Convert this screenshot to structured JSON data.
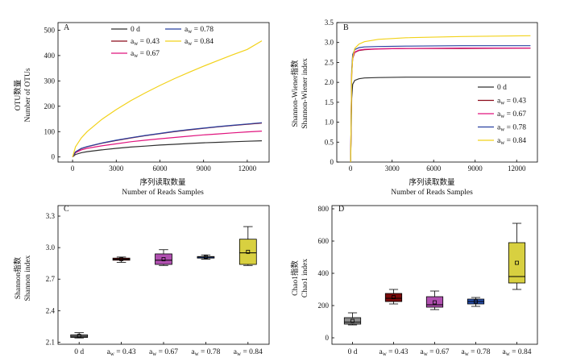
{
  "colors": {
    "d0": "#303030",
    "a043": "#8b0a1a",
    "a067": "#e0147e",
    "a078": "#2840a0",
    "a084": "#f2d21a",
    "box_d0": "#8a8a8a",
    "box_a043": "#7a0a0a",
    "box_a067": "#b050b0",
    "box_a078": "#2850b0",
    "box_a084": "#d8d040"
  },
  "chart_data": [
    {
      "panel": "A",
      "type": "line",
      "xlabel_cn": "序列读取数量",
      "xlabel_en": "Number of Reads Samples",
      "ylabel_cn": "OTU数量",
      "ylabel_en": "Number of OTUs",
      "xlim": [
        -1000,
        13500
      ],
      "ylim": [
        -20,
        530
      ],
      "xticks": [
        0,
        3000,
        6000,
        9000,
        12000
      ],
      "yticks": [
        0,
        100,
        200,
        300,
        400,
        500
      ],
      "legend_position": "top-left",
      "legend": [
        {
          "label_main": "0 d",
          "label_sub": "",
          "label_tail": "",
          "color_key": "d0"
        },
        {
          "label_main": "a",
          "label_sub": "w",
          "label_tail": " = 0.43",
          "color_key": "a043"
        },
        {
          "label_main": "a",
          "label_sub": "w",
          "label_tail": " = 0.67",
          "color_key": "a067"
        },
        {
          "label_main": "a",
          "label_sub": "w",
          "label_tail": " = 0.78",
          "color_key": "a078"
        },
        {
          "label_main": "a",
          "label_sub": "w",
          "label_tail": " = 0.84",
          "color_key": "a084"
        }
      ],
      "series": [
        {
          "color_key": "d0",
          "x": [
            0,
            200,
            600,
            1000,
            2000,
            3000,
            4000,
            5000,
            6000,
            7000,
            8000,
            9000,
            10000,
            11000,
            12000,
            13000
          ],
          "y": [
            0,
            10,
            17,
            21,
            28,
            34,
            39,
            43,
            47,
            50,
            53,
            56,
            58,
            60,
            62,
            64
          ]
        },
        {
          "color_key": "a067",
          "x": [
            0,
            200,
            600,
            1000,
            2000,
            3000,
            4000,
            5000,
            6000,
            7000,
            8000,
            9000,
            10000,
            11000,
            12000,
            13000
          ],
          "y": [
            0,
            17,
            28,
            34,
            44,
            52,
            60,
            66,
            72,
            77,
            82,
            87,
            91,
            95,
            99,
            102
          ]
        },
        {
          "color_key": "a043",
          "x": [
            0,
            200,
            600,
            1000,
            2000,
            3000,
            4000,
            5000,
            6000,
            7000,
            8000,
            9000,
            10000,
            11000,
            12000,
            13000
          ],
          "y": [
            0,
            20,
            33,
            40,
            54,
            65,
            75,
            84,
            92,
            100,
            107,
            113,
            119,
            124,
            129,
            134
          ]
        },
        {
          "color_key": "a078",
          "x": [
            0,
            200,
            600,
            1000,
            2000,
            3000,
            4000,
            5000,
            6000,
            7000,
            8000,
            9000,
            10000,
            11000,
            12000,
            13000
          ],
          "y": [
            0,
            20,
            34,
            41,
            55,
            66,
            76,
            85,
            93,
            101,
            108,
            114,
            120,
            125,
            130,
            135
          ]
        },
        {
          "color_key": "a084",
          "x": [
            0,
            200,
            600,
            1000,
            2000,
            3000,
            4000,
            5000,
            6000,
            7000,
            8000,
            9000,
            10000,
            11000,
            12000,
            13000
          ],
          "y": [
            0,
            40,
            75,
            100,
            148,
            187,
            222,
            253,
            282,
            309,
            334,
            358,
            381,
            403,
            424,
            458
          ]
        }
      ]
    },
    {
      "panel": "B",
      "type": "line",
      "xlabel_cn": "序列读取数量",
      "xlabel_en": "Number of Reads Samples",
      "ylabel_cn": "Shannon-Wiener指数",
      "ylabel_en": "Shannon-Wiener index",
      "xlim": [
        -1000,
        13500
      ],
      "ylim": [
        0,
        3.5
      ],
      "xticks": [
        0,
        3000,
        6000,
        9000,
        12000
      ],
      "yticks": [
        0,
        0.5,
        1.0,
        1.5,
        2.0,
        2.5,
        3.0,
        3.5
      ],
      "ytick_labels": [
        "0",
        "0.5",
        "1.0",
        "1.5",
        "2.0",
        "2.5",
        "3.0",
        "3.5"
      ],
      "legend_position": "bottom-right",
      "series": [
        {
          "color_key": "d0",
          "x": [
            0,
            80,
            150,
            300,
            600,
            1000,
            2000,
            4000,
            8000,
            13000
          ],
          "y": [
            0,
            1.6,
            1.95,
            2.05,
            2.09,
            2.11,
            2.12,
            2.13,
            2.13,
            2.13
          ]
        },
        {
          "color_key": "a043",
          "x": [
            0,
            80,
            150,
            300,
            600,
            1000,
            2000,
            4000,
            8000,
            13000
          ],
          "y": [
            0,
            2.2,
            2.6,
            2.75,
            2.8,
            2.82,
            2.84,
            2.85,
            2.85,
            2.86
          ]
        },
        {
          "color_key": "a067",
          "x": [
            0,
            80,
            150,
            300,
            600,
            1000,
            2000,
            4000,
            8000,
            13000
          ],
          "y": [
            0,
            2.25,
            2.62,
            2.76,
            2.81,
            2.83,
            2.84,
            2.85,
            2.86,
            2.86
          ]
        },
        {
          "color_key": "a078",
          "x": [
            0,
            80,
            150,
            300,
            600,
            1000,
            2000,
            4000,
            8000,
            13000
          ],
          "y": [
            0,
            2.3,
            2.7,
            2.82,
            2.87,
            2.89,
            2.9,
            2.91,
            2.92,
            2.92
          ]
        },
        {
          "color_key": "a084",
          "x": [
            0,
            80,
            150,
            300,
            600,
            1000,
            2000,
            4000,
            8000,
            13000
          ],
          "y": [
            0,
            2.2,
            2.62,
            2.85,
            2.96,
            3.02,
            3.08,
            3.12,
            3.15,
            3.17
          ]
        }
      ]
    },
    {
      "panel": "C",
      "type": "box",
      "ylabel_cn": "Shannon指数",
      "ylabel_en": "Shannon index",
      "ylim": [
        2.08,
        3.4
      ],
      "yticks": [
        2.1,
        2.4,
        2.7,
        3.0,
        3.3
      ],
      "ytick_labels": [
        "2.1",
        "2.4",
        "2.7",
        "3.0",
        "3.3"
      ],
      "categories": [
        {
          "main": "0 d",
          "sub": "",
          "tail": ""
        },
        {
          "main": "a",
          "sub": "w",
          "tail": " = 0.43"
        },
        {
          "main": "a",
          "sub": "w",
          "tail": " = 0.67"
        },
        {
          "main": "a",
          "sub": "w",
          "tail": " = 0.78"
        },
        {
          "main": "a",
          "sub": "w",
          "tail": " = 0.84"
        }
      ],
      "boxes": [
        {
          "color_key": "box_d0",
          "min": 2.14,
          "q1": 2.145,
          "median": 2.155,
          "q3": 2.17,
          "max": 2.19,
          "mean": 2.16
        },
        {
          "color_key": "box_a043",
          "min": 2.86,
          "q1": 2.88,
          "median": 2.89,
          "q3": 2.9,
          "max": 2.91,
          "mean": 2.89
        },
        {
          "color_key": "box_a067",
          "min": 2.83,
          "q1": 2.84,
          "median": 2.88,
          "q3": 2.94,
          "max": 2.98,
          "mean": 2.89
        },
        {
          "color_key": "box_a078",
          "min": 2.89,
          "q1": 2.9,
          "median": 2.91,
          "q3": 2.915,
          "max": 2.93,
          "mean": 2.91
        },
        {
          "color_key": "box_a084",
          "min": 2.83,
          "q1": 2.84,
          "median": 2.95,
          "q3": 3.08,
          "max": 3.2,
          "mean": 2.96
        }
      ]
    },
    {
      "panel": "D",
      "type": "box",
      "ylabel_cn": "Chao1指数",
      "ylabel_en": "Chao1 index",
      "ylim": [
        -40,
        820
      ],
      "yticks": [
        0,
        200,
        400,
        600,
        800
      ],
      "categories": [
        {
          "main": "0 d",
          "sub": "",
          "tail": ""
        },
        {
          "main": "a",
          "sub": "w",
          "tail": " = 0.43"
        },
        {
          "main": "a",
          "sub": "w",
          "tail": " = 0.67"
        },
        {
          "main": "a",
          "sub": "w",
          "tail": " = 0.78"
        },
        {
          "main": "a",
          "sub": "w",
          "tail": " = 0.84"
        }
      ],
      "boxes": [
        {
          "color_key": "box_d0",
          "min": 80,
          "q1": 85,
          "median": 98,
          "q3": 125,
          "max": 155,
          "mean": 105
        },
        {
          "color_key": "box_a043",
          "min": 210,
          "q1": 225,
          "median": 245,
          "q3": 275,
          "max": 300,
          "mean": 252
        },
        {
          "color_key": "box_a067",
          "min": 175,
          "q1": 190,
          "median": 205,
          "q3": 255,
          "max": 290,
          "mean": 220
        },
        {
          "color_key": "box_a078",
          "min": 195,
          "q1": 210,
          "median": 225,
          "q3": 240,
          "max": 250,
          "mean": 225
        },
        {
          "color_key": "box_a084",
          "min": 300,
          "q1": 340,
          "median": 380,
          "q3": 590,
          "max": 710,
          "mean": 465
        }
      ]
    }
  ]
}
